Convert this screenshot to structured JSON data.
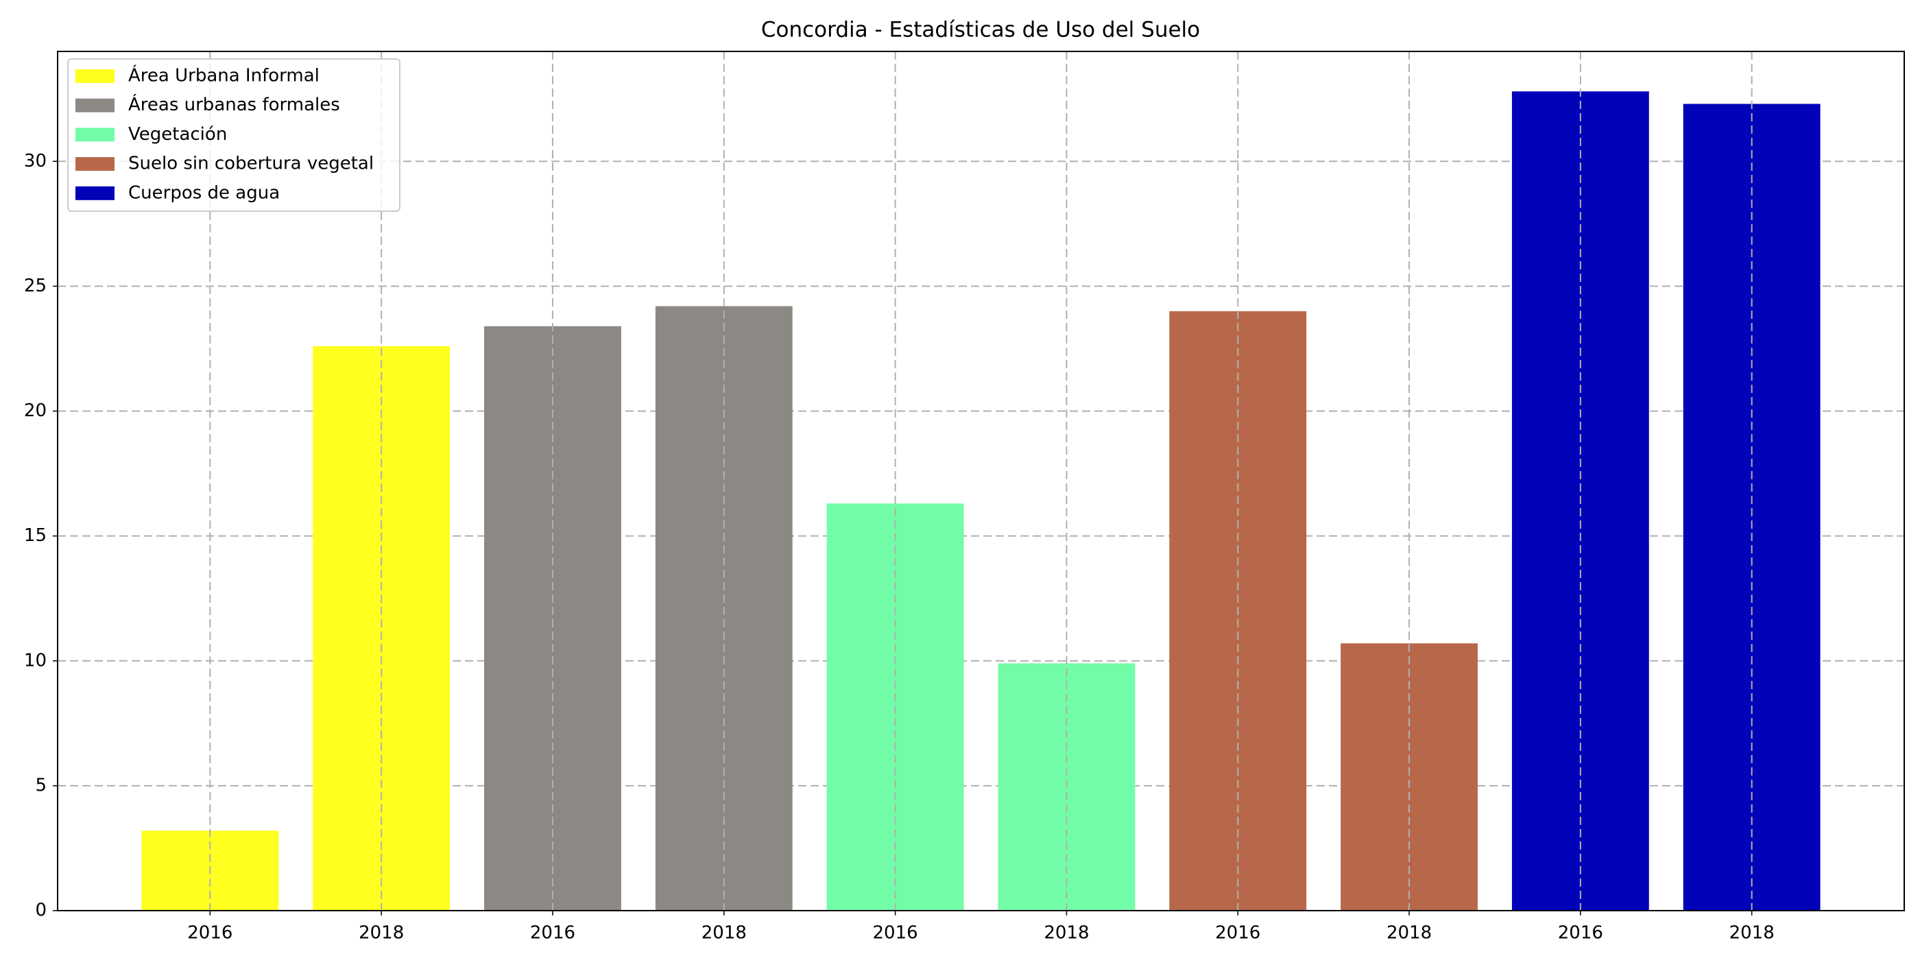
{
  "chart_data": {
    "type": "bar",
    "title": "Concordia - Estadísticas de Uso del Suelo",
    "categories": [
      "2016",
      "2018",
      "2016",
      "2018",
      "2016",
      "2018",
      "2016",
      "2018",
      "2016",
      "2018"
    ],
    "series": [
      {
        "name": "Área Urbana Informal",
        "color": "#ffff20",
        "values": [
          3.2,
          22.6,
          null,
          null,
          null,
          null,
          null,
          null,
          null,
          null
        ]
      },
      {
        "name": "Áreas urbanas formales",
        "color": "#8c8984",
        "values": [
          null,
          null,
          23.4,
          24.2,
          null,
          null,
          null,
          null,
          null,
          null
        ]
      },
      {
        "name": "Vegetación",
        "color": "#73fca7",
        "values": [
          null,
          null,
          null,
          null,
          16.3,
          9.9,
          null,
          null,
          null,
          null
        ]
      },
      {
        "name": "Suelo sin cobertura vegetal",
        "color": "#b8684a",
        "values": [
          null,
          null,
          null,
          null,
          null,
          null,
          24.0,
          10.7,
          null,
          null
        ]
      },
      {
        "name": "Cuerpos de agua",
        "color": "#0202b8",
        "values": [
          null,
          null,
          null,
          null,
          null,
          null,
          null,
          null,
          32.8,
          32.3
        ]
      }
    ],
    "ylim": [
      0,
      34.4
    ],
    "yticks": [
      0,
      5,
      10,
      15,
      20,
      25,
      30
    ],
    "grid": true,
    "legend": "upper left"
  }
}
